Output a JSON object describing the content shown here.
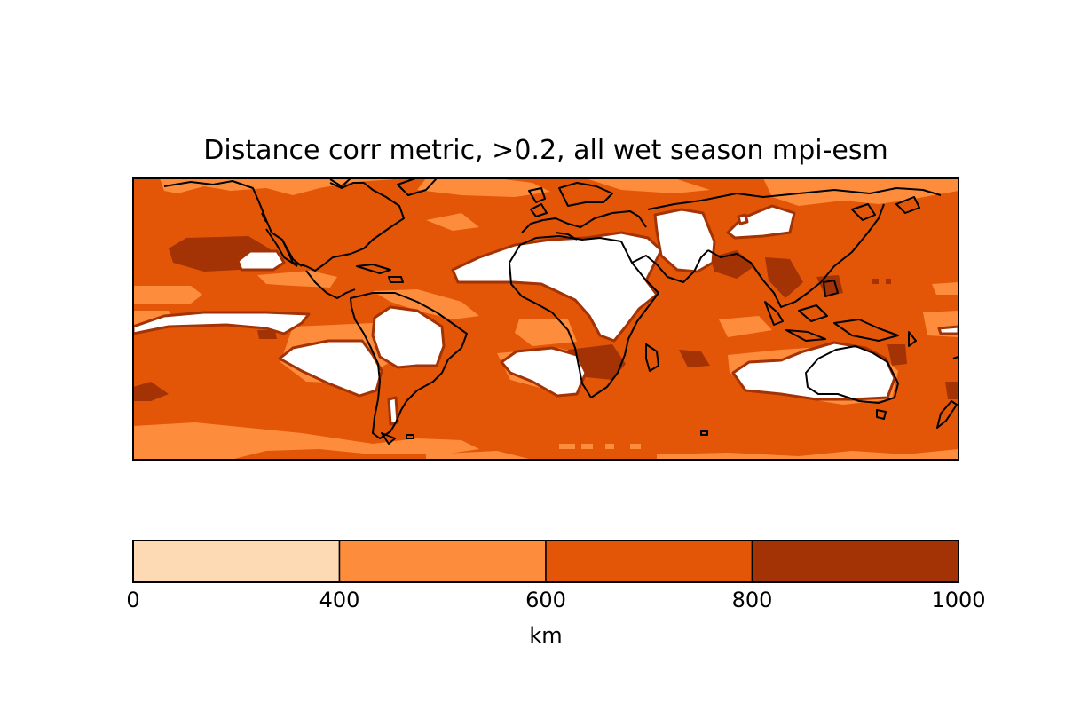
{
  "title": "Distance corr metric, >0.2, all wet season mpi-esm",
  "colorbar": {
    "label": "km",
    "ticks": [
      "0",
      "400",
      "600",
      "800",
      "1000"
    ],
    "bins": [
      {
        "from": 0,
        "to": 400,
        "color": "#fdd9b4"
      },
      {
        "from": 400,
        "to": 600,
        "color": "#fd8d3c"
      },
      {
        "from": 600,
        "to": 800,
        "color": "#e35608"
      },
      {
        "from": 800,
        "to": 1000,
        "color": "#a33204"
      }
    ]
  },
  "colors": {
    "no_data": "#ffffff",
    "coastline": "#000000",
    "frame": "#000000"
  }
}
